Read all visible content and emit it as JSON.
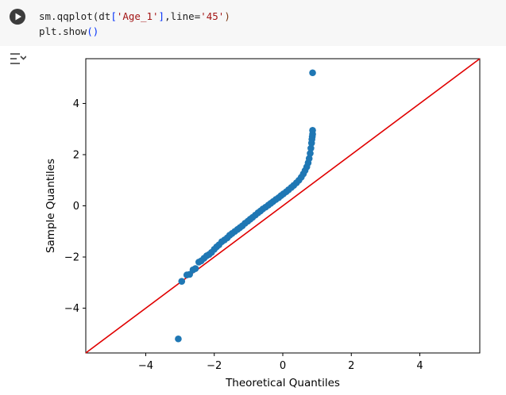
{
  "code_cell": {
    "line1": {
      "prefix": "sm.qqplot(dt",
      "open_bracket": "[",
      "arg": "'Age_1'",
      "close_bracket": "]",
      "mid": ",line=",
      "line_arg": "'45'",
      "close_paren": ")"
    },
    "line2": {
      "prefix": "plt.show",
      "parens": "()"
    },
    "run_icon": "play-icon",
    "output_icon": "output-toggle-icon"
  },
  "chart_data": {
    "type": "scatter",
    "xlabel": "Theoretical Quantiles",
    "ylabel": "Sample Quantiles",
    "xlim": [
      -5.75,
      5.75
    ],
    "ylim": [
      -5.75,
      5.75
    ],
    "xticks": [
      -4,
      -2,
      0,
      2,
      4
    ],
    "yticks": [
      -4,
      -2,
      0,
      2,
      4
    ],
    "grid": false,
    "point_color": "#1f77b4",
    "reference_line": {
      "label": "45",
      "slope": 1,
      "intercept": 0,
      "color": "#e00000"
    },
    "points": {
      "x": [
        -3.05,
        -2.95,
        -2.8,
        -2.72,
        -2.62,
        -2.55,
        -2.45,
        -2.38,
        -2.3,
        -2.22,
        -2.15,
        -2.08,
        -2.0,
        -1.93,
        -1.86,
        -1.78,
        -1.7,
        -1.62,
        -1.55,
        -1.48,
        -1.4,
        -1.32,
        -1.25,
        -1.18,
        -1.1,
        -1.02,
        -0.95,
        -0.88,
        -0.8,
        -0.72,
        -0.65,
        -0.58,
        -0.5,
        -0.42,
        -0.35,
        -0.28,
        -0.2,
        -0.12,
        -0.05,
        0.02,
        0.1,
        0.17,
        0.25,
        0.32,
        0.4,
        0.47,
        0.54,
        0.6,
        0.65,
        0.7,
        0.74,
        0.77,
        0.8,
        0.82,
        0.84,
        0.85,
        0.86,
        0.87,
        0.87,
        0.87
      ],
      "y": [
        -5.2,
        -2.95,
        -2.7,
        -2.68,
        -2.5,
        -2.45,
        -2.2,
        -2.15,
        -2.05,
        -1.95,
        -1.9,
        -1.82,
        -1.7,
        -1.6,
        -1.52,
        -1.4,
        -1.33,
        -1.25,
        -1.15,
        -1.08,
        -1.0,
        -0.92,
        -0.85,
        -0.78,
        -0.68,
        -0.6,
        -0.52,
        -0.45,
        -0.36,
        -0.27,
        -0.2,
        -0.12,
        -0.05,
        0.03,
        0.1,
        0.17,
        0.25,
        0.32,
        0.4,
        0.47,
        0.55,
        0.63,
        0.72,
        0.8,
        0.9,
        1.0,
        1.12,
        1.25,
        1.38,
        1.52,
        1.68,
        1.85,
        2.05,
        2.25,
        2.45,
        2.6,
        2.7,
        2.8,
        2.95,
        5.2
      ]
    }
  }
}
